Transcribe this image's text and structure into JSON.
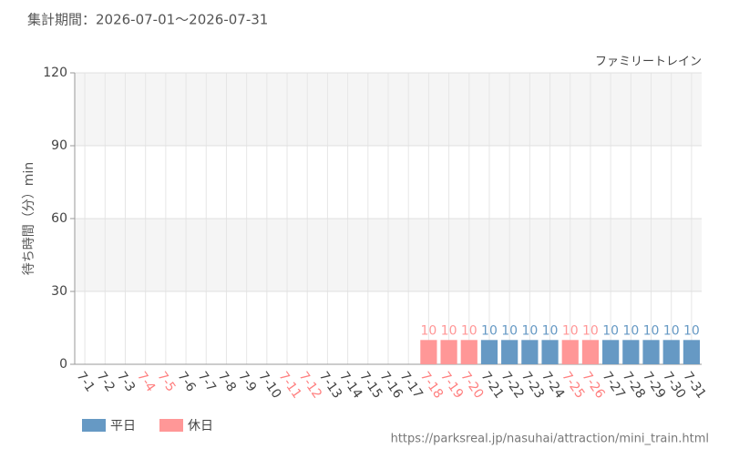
{
  "chart_data": {
    "type": "bar",
    "title": "集計期間：2026-07-01～2026-07-31",
    "subtitle": "ファミリートレイン",
    "y_label": "待ち時間（分）min",
    "source": "https://parksreal.jp/nasuhai/attraction/mini_train.html",
    "categories": [
      "7-1",
      "7-2",
      "7-3",
      "7-4",
      "7-5",
      "7-6",
      "7-7",
      "7-8",
      "7-9",
      "7-10",
      "7-11",
      "7-12",
      "7-13",
      "7-14",
      "7-15",
      "7-16",
      "7-17",
      "7-18",
      "7-19",
      "7-20",
      "7-21",
      "7-22",
      "7-23",
      "7-24",
      "7-25",
      "7-26",
      "7-27",
      "7-28",
      "7-29",
      "7-30",
      "7-31"
    ],
    "category_colors": [
      "#444",
      "#444",
      "#444",
      "#ff8080",
      "#ff8080",
      "#444",
      "#444",
      "#444",
      "#444",
      "#444",
      "#ff8080",
      "#ff8080",
      "#444",
      "#444",
      "#444",
      "#444",
      "#444",
      "#ff8080",
      "#ff8080",
      "#ff8080",
      "#444",
      "#444",
      "#444",
      "#444",
      "#ff8080",
      "#ff8080",
      "#444",
      "#444",
      "#444",
      "#444",
      "#444"
    ],
    "series": [
      {
        "name": "平日",
        "color": "#6699c4",
        "values": [
          null,
          null,
          null,
          null,
          null,
          null,
          null,
          null,
          null,
          null,
          null,
          null,
          null,
          null,
          null,
          null,
          null,
          null,
          null,
          null,
          10,
          10,
          10,
          10,
          null,
          null,
          10,
          10,
          10,
          10,
          10
        ]
      },
      {
        "name": "休日",
        "color": "#ff9797",
        "values": [
          null,
          null,
          null,
          null,
          null,
          null,
          null,
          null,
          null,
          null,
          null,
          null,
          null,
          null,
          null,
          null,
          null,
          10,
          10,
          10,
          null,
          null,
          null,
          null,
          10,
          10,
          null,
          null,
          null,
          null,
          null
        ]
      }
    ],
    "ylim": [
      0,
      120
    ],
    "yticks": [
      0,
      30,
      60,
      90,
      120
    ],
    "grid": true
  }
}
